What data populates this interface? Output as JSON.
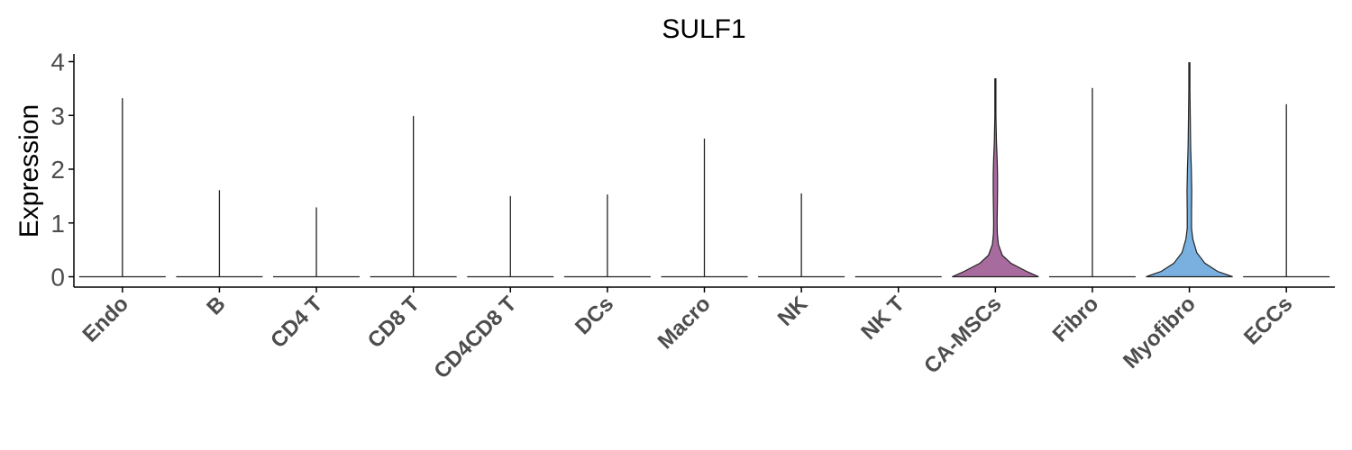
{
  "chart_data": {
    "type": "violin",
    "title": "SULF1",
    "xlabel": "",
    "ylabel": "Expression",
    "ylim": [
      -0.2,
      4.15
    ],
    "yticks": [
      0,
      1,
      2,
      3,
      4
    ],
    "grid": false,
    "legend": "none",
    "categories": [
      "Endo",
      "B",
      "CD4 T",
      "CD8 T",
      "CD4CD8 T",
      "DCs",
      "Macro",
      "NK",
      "NK T",
      "CA-MSCs",
      "Fibro",
      "Myofibro",
      "ECCs"
    ],
    "max_values": [
      3.32,
      1.61,
      1.29,
      2.99,
      1.5,
      1.53,
      2.57,
      1.55,
      0,
      3.68,
      3.51,
      3.98,
      3.21
    ],
    "colors": [
      "#ffffff",
      "#ffffff",
      "#ffffff",
      "#ffffff",
      "#ffffff",
      "#ffffff",
      "#ffffff",
      "#ffffff",
      "#ffffff",
      "#a76b9e",
      "#ffffff",
      "#7ab0e0",
      "#ffffff"
    ],
    "density_profiles": {
      "CA-MSCs": [
        [
          0,
          1.0
        ],
        [
          0.1,
          0.72
        ],
        [
          0.25,
          0.36
        ],
        [
          0.4,
          0.16
        ],
        [
          0.6,
          0.07
        ],
        [
          0.8,
          0.045
        ],
        [
          1.0,
          0.04
        ],
        [
          1.3,
          0.045
        ],
        [
          1.6,
          0.05
        ],
        [
          1.9,
          0.05
        ],
        [
          2.2,
          0.04
        ],
        [
          2.5,
          0.025
        ],
        [
          3.0,
          0.01
        ],
        [
          3.68,
          0.0
        ]
      ],
      "Myofibro": [
        [
          0,
          1.0
        ],
        [
          0.1,
          0.65
        ],
        [
          0.25,
          0.36
        ],
        [
          0.45,
          0.17
        ],
        [
          0.7,
          0.08
        ],
        [
          0.9,
          0.05
        ],
        [
          1.2,
          0.05
        ],
        [
          1.6,
          0.055
        ],
        [
          2.0,
          0.045
        ],
        [
          2.4,
          0.03
        ],
        [
          3.0,
          0.02
        ],
        [
          3.5,
          0.01
        ],
        [
          3.98,
          0.0
        ]
      ]
    }
  }
}
